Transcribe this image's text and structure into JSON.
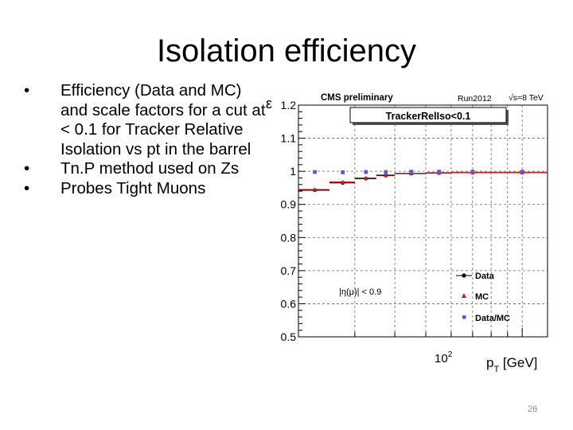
{
  "slide": {
    "title": "Isolation efficiency",
    "bullets": [
      "Efficiency (Data and MC) and scale factors for a cut at < 0.1 for Tracker Relative Isolation vs pt in the barrel",
      "Tn.P method used on Zs",
      "Probes Tight Muons"
    ],
    "slide_number": "26"
  },
  "chart_data": {
    "type": "scatter",
    "title": "CMS preliminary",
    "run_label": "Run2012",
    "energy_label": "√s=8 TeV",
    "cut_label": "TrackerRelIso<0.1",
    "region_label": "|η(μ)| < 0.9",
    "ylabel": "ε",
    "xlabel": "p",
    "xlabel_sub": "T",
    "xlabel_unit": " [GeV]",
    "x_major_tick_base": "10",
    "x_major_tick_exp": "2",
    "xscale": "log",
    "xlim": [
      20,
      120
    ],
    "ylim": [
      0.5,
      1.2
    ],
    "yticks": [
      0.5,
      0.6,
      0.7,
      0.8,
      0.9,
      1,
      1.1,
      1.2
    ],
    "ytick_labels": [
      "0.5",
      "0.6",
      "0.7",
      "0.8",
      "0.9",
      "1",
      "1.1",
      "1.2"
    ],
    "xticks_minor": [
      20,
      30,
      40,
      50,
      60,
      70,
      80,
      90
    ],
    "xtick_major": 100,
    "bin_edges": [
      20,
      25,
      30,
      35,
      40,
      50,
      60,
      80,
      120
    ],
    "x": [
      22.5,
      27.5,
      32.5,
      37.5,
      45,
      55,
      70,
      100
    ],
    "series": [
      {
        "name": "Data",
        "marker": "circle",
        "color": "#000000",
        "values": [
          0.943,
          0.965,
          0.978,
          0.987,
          0.993,
          0.995,
          0.996,
          0.996
        ]
      },
      {
        "name": "MC",
        "marker": "triangle",
        "color": "#cc2020",
        "values": [
          0.945,
          0.968,
          0.98,
          0.989,
          0.994,
          0.996,
          0.997,
          0.997
        ]
      },
      {
        "name": "Data/MC",
        "marker": "square",
        "color": "#5a5ae0",
        "values": [
          0.998,
          0.997,
          0.998,
          0.998,
          0.999,
          0.999,
          0.999,
          0.999
        ]
      }
    ],
    "legend_position": "bottom-right",
    "grid": true
  }
}
